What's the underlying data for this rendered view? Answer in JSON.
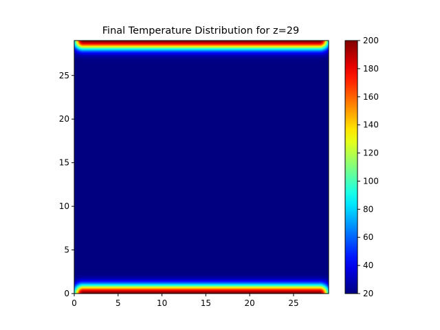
{
  "chart_data": {
    "type": "heatmap",
    "title": "Final Temperature Distribution for z=29",
    "xlabel": "",
    "ylabel": "",
    "xlim": [
      0,
      29
    ],
    "ylim": [
      0,
      29
    ],
    "x_ticks": [
      0,
      5,
      10,
      15,
      20,
      25
    ],
    "y_ticks": [
      0,
      5,
      10,
      15,
      20,
      25
    ],
    "colormap": "jet",
    "colorbar": {
      "vmin": 20,
      "vmax": 200,
      "ticks": [
        20,
        40,
        60,
        80,
        100,
        120,
        140,
        160,
        180,
        200
      ]
    },
    "grid": false,
    "field": {
      "base_value": 20,
      "hot_value": 200,
      "hot_edges": [
        "top",
        "bottom"
      ],
      "hot_span_x": [
        1,
        28
      ],
      "decay_length": 1
    }
  }
}
